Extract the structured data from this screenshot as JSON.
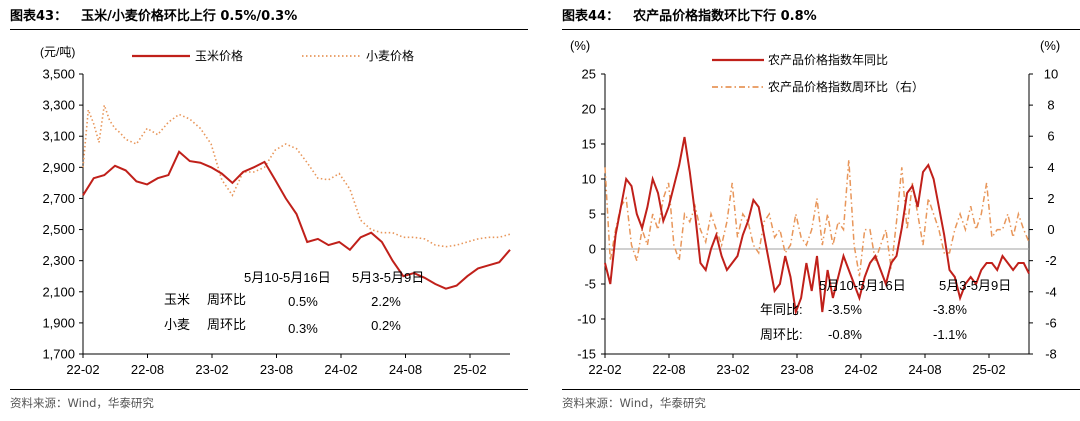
{
  "colors": {
    "corn": "#C0201A",
    "wheat": "#E8965A",
    "yoy": "#C0201A",
    "wow": "#E8965A",
    "axis": "#000000",
    "zero": "#A0A0A0"
  },
  "left": {
    "tag": "图表43：",
    "title": "玉米/小麦价格环比上行 0.5%/0.3%",
    "source": "资料来源：Wind，华泰研究",
    "chart_data": {
      "type": "line",
      "yunit": "(元/吨)",
      "ylim": [
        1700,
        3500
      ],
      "yticks": [
        "1,700",
        "1,900",
        "2,100",
        "2,300",
        "2,500",
        "2,700",
        "2,900",
        "3,100",
        "3,300",
        "3,500"
      ],
      "xticks": [
        "22-02",
        "22-08",
        "23-02",
        "23-08",
        "24-02",
        "24-08",
        "25-02"
      ],
      "legend_placement": "top",
      "series": [
        {
          "name": "玉米价格",
          "style": "solid",
          "x": [
            0,
            1,
            2,
            3,
            4,
            5,
            6,
            7,
            8,
            9,
            10,
            11,
            12,
            13,
            14,
            15,
            16,
            17,
            18,
            19,
            20,
            21,
            22,
            23,
            24,
            25,
            26,
            27,
            28,
            29,
            30,
            31,
            32,
            33,
            34,
            35,
            36,
            37,
            38,
            39,
            40
          ],
          "values": [
            2720,
            2830,
            2850,
            2910,
            2880,
            2810,
            2790,
            2830,
            2850,
            3000,
            2940,
            2930,
            2900,
            2860,
            2800,
            2870,
            2900,
            2935,
            2820,
            2700,
            2600,
            2420,
            2440,
            2400,
            2420,
            2370,
            2450,
            2480,
            2420,
            2300,
            2200,
            2220,
            2190,
            2150,
            2120,
            2140,
            2200,
            2250,
            2270,
            2290,
            2370
          ]
        },
        {
          "name": "小麦价格",
          "style": "dotted",
          "x": [
            0,
            0.5,
            1,
            1.5,
            2,
            2.5,
            3,
            3.5,
            4,
            5,
            6,
            7,
            8,
            9,
            10,
            11,
            12,
            13,
            14,
            15,
            16,
            17,
            18,
            19,
            20,
            21,
            22,
            23,
            24,
            25,
            26,
            27,
            28,
            29,
            30,
            31,
            32,
            33,
            34,
            35,
            36,
            37,
            38,
            39,
            40
          ],
          "values": [
            2900,
            3270,
            3180,
            3060,
            3300,
            3200,
            3150,
            3120,
            3080,
            3050,
            3150,
            3110,
            3190,
            3240,
            3210,
            3150,
            3050,
            2820,
            2720,
            2870,
            2870,
            2900,
            3010,
            3050,
            3020,
            2930,
            2830,
            2820,
            2860,
            2760,
            2560,
            2500,
            2480,
            2480,
            2450,
            2450,
            2440,
            2400,
            2390,
            2400,
            2420,
            2440,
            2450,
            2450,
            2470
          ]
        }
      ],
      "annotations": [
        {
          "text": "5月10-5月16日"
        },
        {
          "text": "5月3-5月9日"
        },
        {
          "text": "玉米"
        },
        {
          "text": "周环比"
        },
        {
          "text": "0.5%"
        },
        {
          "text": "2.2%"
        },
        {
          "text": "小麦"
        },
        {
          "text": "周环比"
        },
        {
          "text": "0.3%"
        },
        {
          "text": "0.2%"
        }
      ]
    }
  },
  "right": {
    "tag": "图表44：",
    "title": "农产品价格指数环比下行 0.8%",
    "source": "资料来源：Wind，华泰研究",
    "chart_data": {
      "type": "line",
      "yunit_left": "(%)",
      "yunit_right": "(%)",
      "ylim_left": [
        -15,
        25
      ],
      "ylim_right": [
        -8,
        10
      ],
      "yticks_left": [
        "-15",
        "-10",
        "-5",
        "0",
        "5",
        "10",
        "15",
        "20",
        "25"
      ],
      "yticks_right": [
        "-8",
        "-6",
        "-4",
        "-2",
        "0",
        "2",
        "4",
        "6",
        "8",
        "10"
      ],
      "xticks": [
        "22-02",
        "22-08",
        "23-02",
        "23-08",
        "24-02",
        "24-08",
        "25-02"
      ],
      "legend_placement": "top",
      "series": [
        {
          "name": "农产品价格指数年同比",
          "axis": "left",
          "style": "solid",
          "x": [
            0,
            1,
            2,
            3,
            4,
            5,
            6,
            7,
            8,
            9,
            10,
            11,
            12,
            13,
            14,
            15,
            16,
            17,
            18,
            19,
            20,
            21,
            22,
            23,
            24,
            25,
            26,
            27,
            28,
            29,
            30,
            31,
            32,
            33,
            34,
            35,
            36,
            37,
            38,
            39,
            40,
            41,
            42,
            43,
            44,
            45,
            46,
            47,
            48,
            49,
            50,
            51,
            52,
            53,
            54,
            55,
            56,
            57,
            58,
            59,
            60,
            61,
            62,
            63,
            64,
            65,
            66,
            67,
            68,
            69,
            70,
            71,
            72,
            73,
            74,
            75,
            76,
            77,
            78,
            79,
            80
          ],
          "values": [
            -2,
            -5,
            2,
            6,
            10,
            9,
            5,
            3,
            6,
            10,
            8,
            4,
            6,
            9,
            12,
            16,
            11,
            5,
            -2,
            -3,
            0,
            2,
            -1,
            -3,
            -2,
            -1,
            2,
            4,
            7,
            6,
            2,
            -2,
            -6,
            -5,
            -1,
            -4,
            -9,
            -7,
            -2,
            -6,
            -1,
            -9,
            -3,
            -7,
            -4,
            -1,
            -3,
            -5,
            -7,
            -4,
            -2,
            -1,
            -3,
            -5,
            -2,
            -1,
            3,
            8,
            9,
            6,
            11,
            12,
            10,
            6,
            2,
            -3,
            -4,
            -7,
            -5,
            -4,
            -5,
            -3,
            -2,
            -2,
            -3,
            -1,
            -2,
            -3,
            -2,
            -2,
            -3.5
          ]
        },
        {
          "name": "农产品价格指数周环比（右）",
          "axis": "right",
          "style": "dashdot",
          "x": [
            0,
            1,
            2,
            3,
            4,
            5,
            6,
            7,
            8,
            9,
            10,
            11,
            12,
            13,
            14,
            15,
            16,
            17,
            18,
            19,
            20,
            21,
            22,
            23,
            24,
            25,
            26,
            27,
            28,
            29,
            30,
            31,
            32,
            33,
            34,
            35,
            36,
            37,
            38,
            39,
            40,
            41,
            42,
            43,
            44,
            45,
            46,
            47,
            48,
            49,
            50,
            51,
            52,
            53,
            54,
            55,
            56,
            57,
            58,
            59,
            60,
            61,
            62,
            63,
            64,
            65,
            66,
            67,
            68,
            69,
            70,
            71,
            72,
            73,
            74,
            75,
            76,
            77,
            78,
            79,
            80
          ],
          "values": [
            4,
            -2,
            0,
            1.5,
            2,
            -1,
            -2,
            0,
            -1,
            1,
            0,
            2,
            3,
            -1,
            -2,
            1,
            0.5,
            1.5,
            0,
            -0.8,
            1,
            0,
            -1,
            0.5,
            3,
            -0.5,
            1,
            0.5,
            -1,
            -1.5,
            0.5,
            1,
            -0.5,
            0,
            -1.5,
            -1,
            1,
            -0.5,
            -1,
            0,
            2,
            -1,
            1,
            -1,
            0.5,
            0,
            4.5,
            -1,
            -3,
            0,
            0,
            -2,
            -1,
            0,
            -2.5,
            0.5,
            4,
            0,
            3,
            1,
            -1,
            2,
            1,
            0,
            -1.5,
            -1.5,
            0,
            1,
            0,
            1.5,
            0,
            1,
            3,
            -0.5,
            0,
            0,
            1,
            -0.5,
            1,
            0,
            -0.8
          ]
        }
      ],
      "annotations": [
        {
          "text": "5月10-5月16日"
        },
        {
          "text": "5月3-5月9日"
        },
        {
          "text": "年同比:"
        },
        {
          "text": "-3.5%"
        },
        {
          "text": "-3.8%"
        },
        {
          "text": "周环比:"
        },
        {
          "text": "-0.8%"
        },
        {
          "text": "-1.1%"
        }
      ]
    }
  }
}
